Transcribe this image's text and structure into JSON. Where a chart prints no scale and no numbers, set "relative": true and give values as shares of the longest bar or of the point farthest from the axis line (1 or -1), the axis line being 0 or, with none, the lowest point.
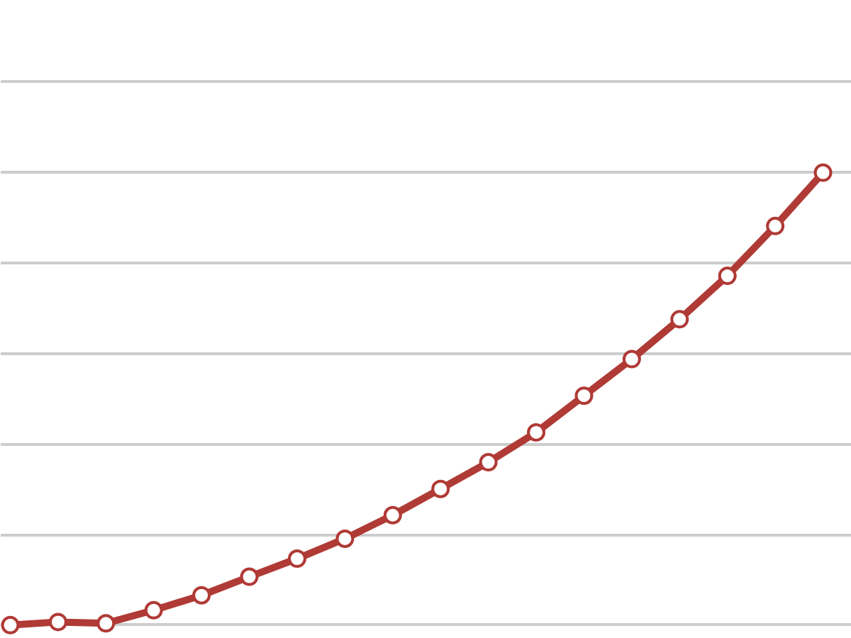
{
  "chart_data": {
    "type": "line",
    "relative": true,
    "categories": [
      null,
      null,
      null,
      null,
      null,
      null,
      null,
      null,
      null,
      null,
      null,
      null,
      null,
      null,
      null,
      null,
      null,
      null
    ],
    "series": [
      {
        "color": "#b03a35",
        "values": [
          0,
          0.007,
          0.004,
          0.033,
          0.066,
          0.107,
          0.147,
          0.191,
          0.243,
          0.301,
          0.36,
          0.426,
          0.507,
          0.588,
          0.676,
          0.772,
          0.882,
          1
        ]
      }
    ],
    "grid": "y",
    "marker": "circle",
    "line_style": "solid"
  }
}
